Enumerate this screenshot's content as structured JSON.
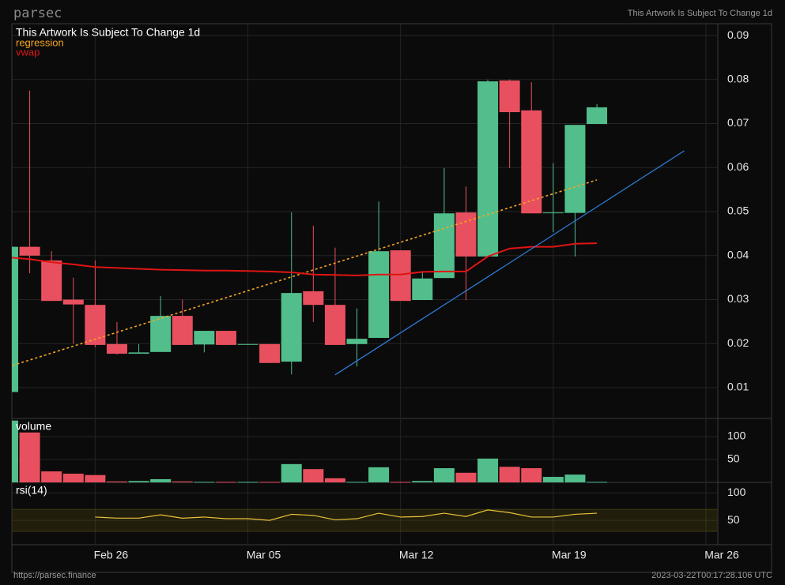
{
  "header": {
    "brand": "parsec",
    "title": "This Artwork Is Subject To Change 1d"
  },
  "chart_data": [
    {
      "type": "candlestick",
      "title": "This Artwork Is Subject To Change 1d",
      "x": [
        "Feb 22",
        "Feb 23",
        "Feb 24",
        "Feb 25",
        "Feb 26",
        "Feb 27",
        "Feb 28",
        "Mar 01",
        "Mar 02",
        "Mar 03",
        "Mar 04",
        "Mar 05",
        "Mar 06",
        "Mar 07",
        "Mar 08",
        "Mar 09",
        "Mar 10",
        "Mar 11",
        "Mar 12",
        "Mar 13",
        "Mar 14",
        "Mar 15",
        "Mar 16",
        "Mar 17",
        "Mar 18",
        "Mar 19",
        "Mar 20",
        "Mar 21"
      ],
      "open": [
        0.009,
        0.042,
        0.0389,
        0.03,
        0.0288,
        0.0199,
        0.0177,
        0.0181,
        0.0263,
        0.0198,
        0.0229,
        0.0199,
        0.0199,
        0.0159,
        0.0319,
        0.0288,
        0.0199,
        0.0213,
        0.0412,
        0.0299,
        0.0349,
        0.0498,
        0.0398,
        0.0798,
        0.073,
        0.0498,
        0.0497,
        0.0699
      ],
      "high": [
        0.042,
        0.0775,
        0.041,
        0.035,
        0.0389,
        0.0249,
        0.0199,
        0.0308,
        0.03,
        0.0229,
        0.0229,
        0.0199,
        0.0199,
        0.0498,
        0.0468,
        0.0418,
        0.028,
        0.0523,
        0.0412,
        0.0365,
        0.0599,
        0.0557,
        0.08,
        0.08,
        0.0794,
        0.061,
        0.0697,
        0.0744
      ],
      "low": [
        0.009,
        0.036,
        0.0297,
        0.02,
        0.0192,
        0.0175,
        0.0177,
        0.0181,
        0.0197,
        0.018,
        0.0197,
        0.0199,
        0.0156,
        0.013,
        0.0249,
        0.0197,
        0.0148,
        0.0213,
        0.0297,
        0.0299,
        0.0349,
        0.0299,
        0.0398,
        0.0599,
        0.0496,
        0.0453,
        0.0398,
        0.0699
      ],
      "close": [
        0.042,
        0.04,
        0.0297,
        0.0289,
        0.0197,
        0.0177,
        0.018,
        0.0263,
        0.0197,
        0.0229,
        0.0197,
        0.0199,
        0.0156,
        0.0315,
        0.0288,
        0.0197,
        0.0211,
        0.041,
        0.0297,
        0.0348,
        0.0496,
        0.0398,
        0.0796,
        0.0726,
        0.0496,
        0.0498,
        0.0697,
        0.0737
      ],
      "up_color": "#52be8c",
      "down_color": "#e9505f",
      "overlays": [
        {
          "name": "regression",
          "color": "#f5a623",
          "style": "dotted",
          "x": [
            "Feb 22",
            "Mar 21"
          ],
          "values": [
            0.0147,
            0.0572
          ]
        },
        {
          "name": "vwap",
          "color": "#e01414",
          "style": "solid",
          "values": [
            0.0396,
            0.0392,
            0.0385,
            0.038,
            0.0374,
            0.0372,
            0.037,
            0.0368,
            0.0367,
            0.0366,
            0.0366,
            0.0365,
            0.0364,
            0.0362,
            0.0357,
            0.0356,
            0.0355,
            0.0357,
            0.0357,
            0.0363,
            0.0364,
            0.0364,
            0.0398,
            0.0416,
            0.042,
            0.042,
            0.0427,
            0.0428
          ]
        }
      ],
      "trendline": {
        "color": "#2f80e0",
        "x": [
          "Mar 09",
          "Mar 25"
        ],
        "values": [
          0.0129,
          0.0638
        ]
      },
      "xlim": [
        "Feb 22",
        "Mar 26"
      ],
      "ylim": [
        0.003,
        0.0927
      ],
      "yticks": [
        0.01,
        0.02,
        0.03,
        0.04,
        0.05,
        0.06,
        0.07,
        0.08,
        0.09
      ],
      "grid": true
    },
    {
      "type": "bar",
      "title": "volume",
      "x": [
        "Feb 22",
        "Feb 23",
        "Feb 24",
        "Feb 25",
        "Feb 26",
        "Feb 27",
        "Feb 28",
        "Mar 01",
        "Mar 02",
        "Mar 03",
        "Mar 04",
        "Mar 05",
        "Mar 06",
        "Mar 07",
        "Mar 08",
        "Mar 09",
        "Mar 10",
        "Mar 11",
        "Mar 12",
        "Mar 13",
        "Mar 14",
        "Mar 15",
        "Mar 16",
        "Mar 17",
        "Mar 18",
        "Mar 19",
        "Mar 20",
        "Mar 21"
      ],
      "values": [
        135,
        109,
        24,
        19,
        16,
        2,
        3,
        7,
        2,
        1,
        1,
        1,
        1,
        40,
        29,
        9,
        1,
        33,
        1,
        3,
        31,
        21,
        52,
        34,
        31,
        12,
        17,
        1
      ],
      "ylim": [
        0,
        138
      ],
      "yticks": [
        50,
        100
      ]
    },
    {
      "type": "line",
      "title": "rsi(14)",
      "color": "#e8c33a",
      "x": [
        "Feb 22",
        "Feb 23",
        "Feb 24",
        "Feb 25",
        "Feb 26",
        "Feb 27",
        "Feb 28",
        "Mar 01",
        "Mar 02",
        "Mar 03",
        "Mar 04",
        "Mar 05",
        "Mar 06",
        "Mar 07",
        "Mar 08",
        "Mar 09",
        "Mar 10",
        "Mar 11",
        "Mar 12",
        "Mar 13",
        "Mar 14",
        "Mar 15",
        "Mar 16",
        "Mar 17",
        "Mar 18",
        "Mar 19",
        "Mar 20",
        "Mar 21"
      ],
      "values": [
        null,
        null,
        null,
        null,
        56,
        54,
        54,
        60,
        54,
        56,
        53,
        53,
        50,
        61,
        59,
        51,
        53,
        63,
        56,
        57,
        63,
        57,
        69,
        64,
        56,
        56,
        61,
        63
      ],
      "band": [
        30,
        70
      ],
      "ylim": [
        0,
        119
      ],
      "yticks": [
        50,
        100
      ],
      "xticks": [
        "Feb 26",
        "Mar 05",
        "Mar 12",
        "Mar 19",
        "Mar 26"
      ]
    }
  ],
  "footer": {
    "url": "https://parsec.finance",
    "timestamp": "2023-03-22T00:17:28.106 UTC"
  }
}
